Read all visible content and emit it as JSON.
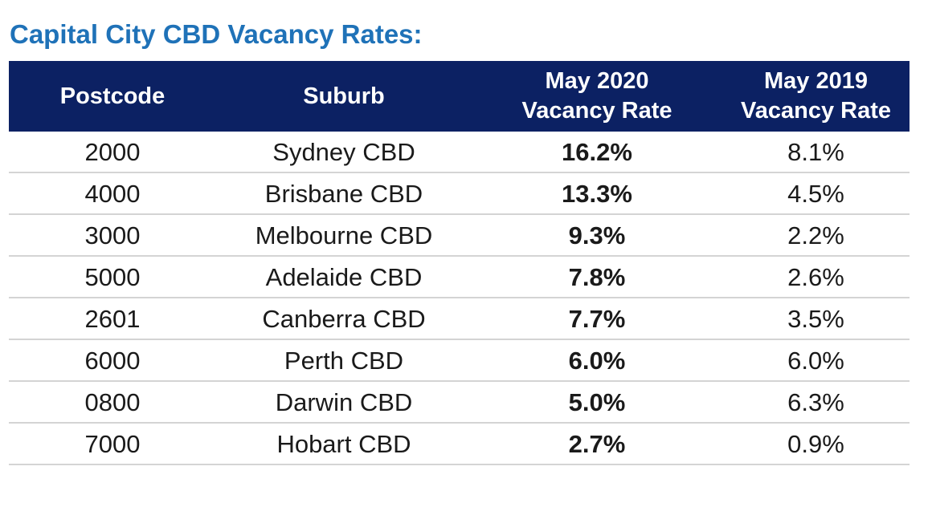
{
  "title": "Capital City CBD Vacancy Rates:",
  "table": {
    "headers": [
      {
        "line1": "Postcode",
        "line2": ""
      },
      {
        "line1": "Suburb",
        "line2": ""
      },
      {
        "line1": "May 2020",
        "line2": "Vacancy Rate"
      },
      {
        "line1": "May 2019",
        "line2": "Vacancy Rate"
      }
    ],
    "rows": [
      {
        "postcode": "2000",
        "suburb": "Sydney CBD",
        "may2020": "16.2%",
        "may2019": "8.1%"
      },
      {
        "postcode": "4000",
        "suburb": "Brisbane CBD",
        "may2020": "13.3%",
        "may2019": "4.5%"
      },
      {
        "postcode": "3000",
        "suburb": "Melbourne CBD",
        "may2020": "9.3%",
        "may2019": "2.2%"
      },
      {
        "postcode": "5000",
        "suburb": "Adelaide CBD",
        "may2020": "7.8%",
        "may2019": "2.6%"
      },
      {
        "postcode": "2601",
        "suburb": "Canberra CBD",
        "may2020": "7.7%",
        "may2019": "3.5%"
      },
      {
        "postcode": "6000",
        "suburb": "Perth CBD",
        "may2020": "6.0%",
        "may2019": "6.0%"
      },
      {
        "postcode": "0800",
        "suburb": "Darwin CBD",
        "may2020": "5.0%",
        "may2019": "6.3%"
      },
      {
        "postcode": "7000",
        "suburb": "Hobart CBD",
        "may2020": "2.7%",
        "may2019": "0.9%"
      }
    ]
  },
  "colors": {
    "title": "#1f72b8",
    "header_bg": "#0c2163",
    "header_text": "#ffffff",
    "divider": "#d4d4d4"
  }
}
